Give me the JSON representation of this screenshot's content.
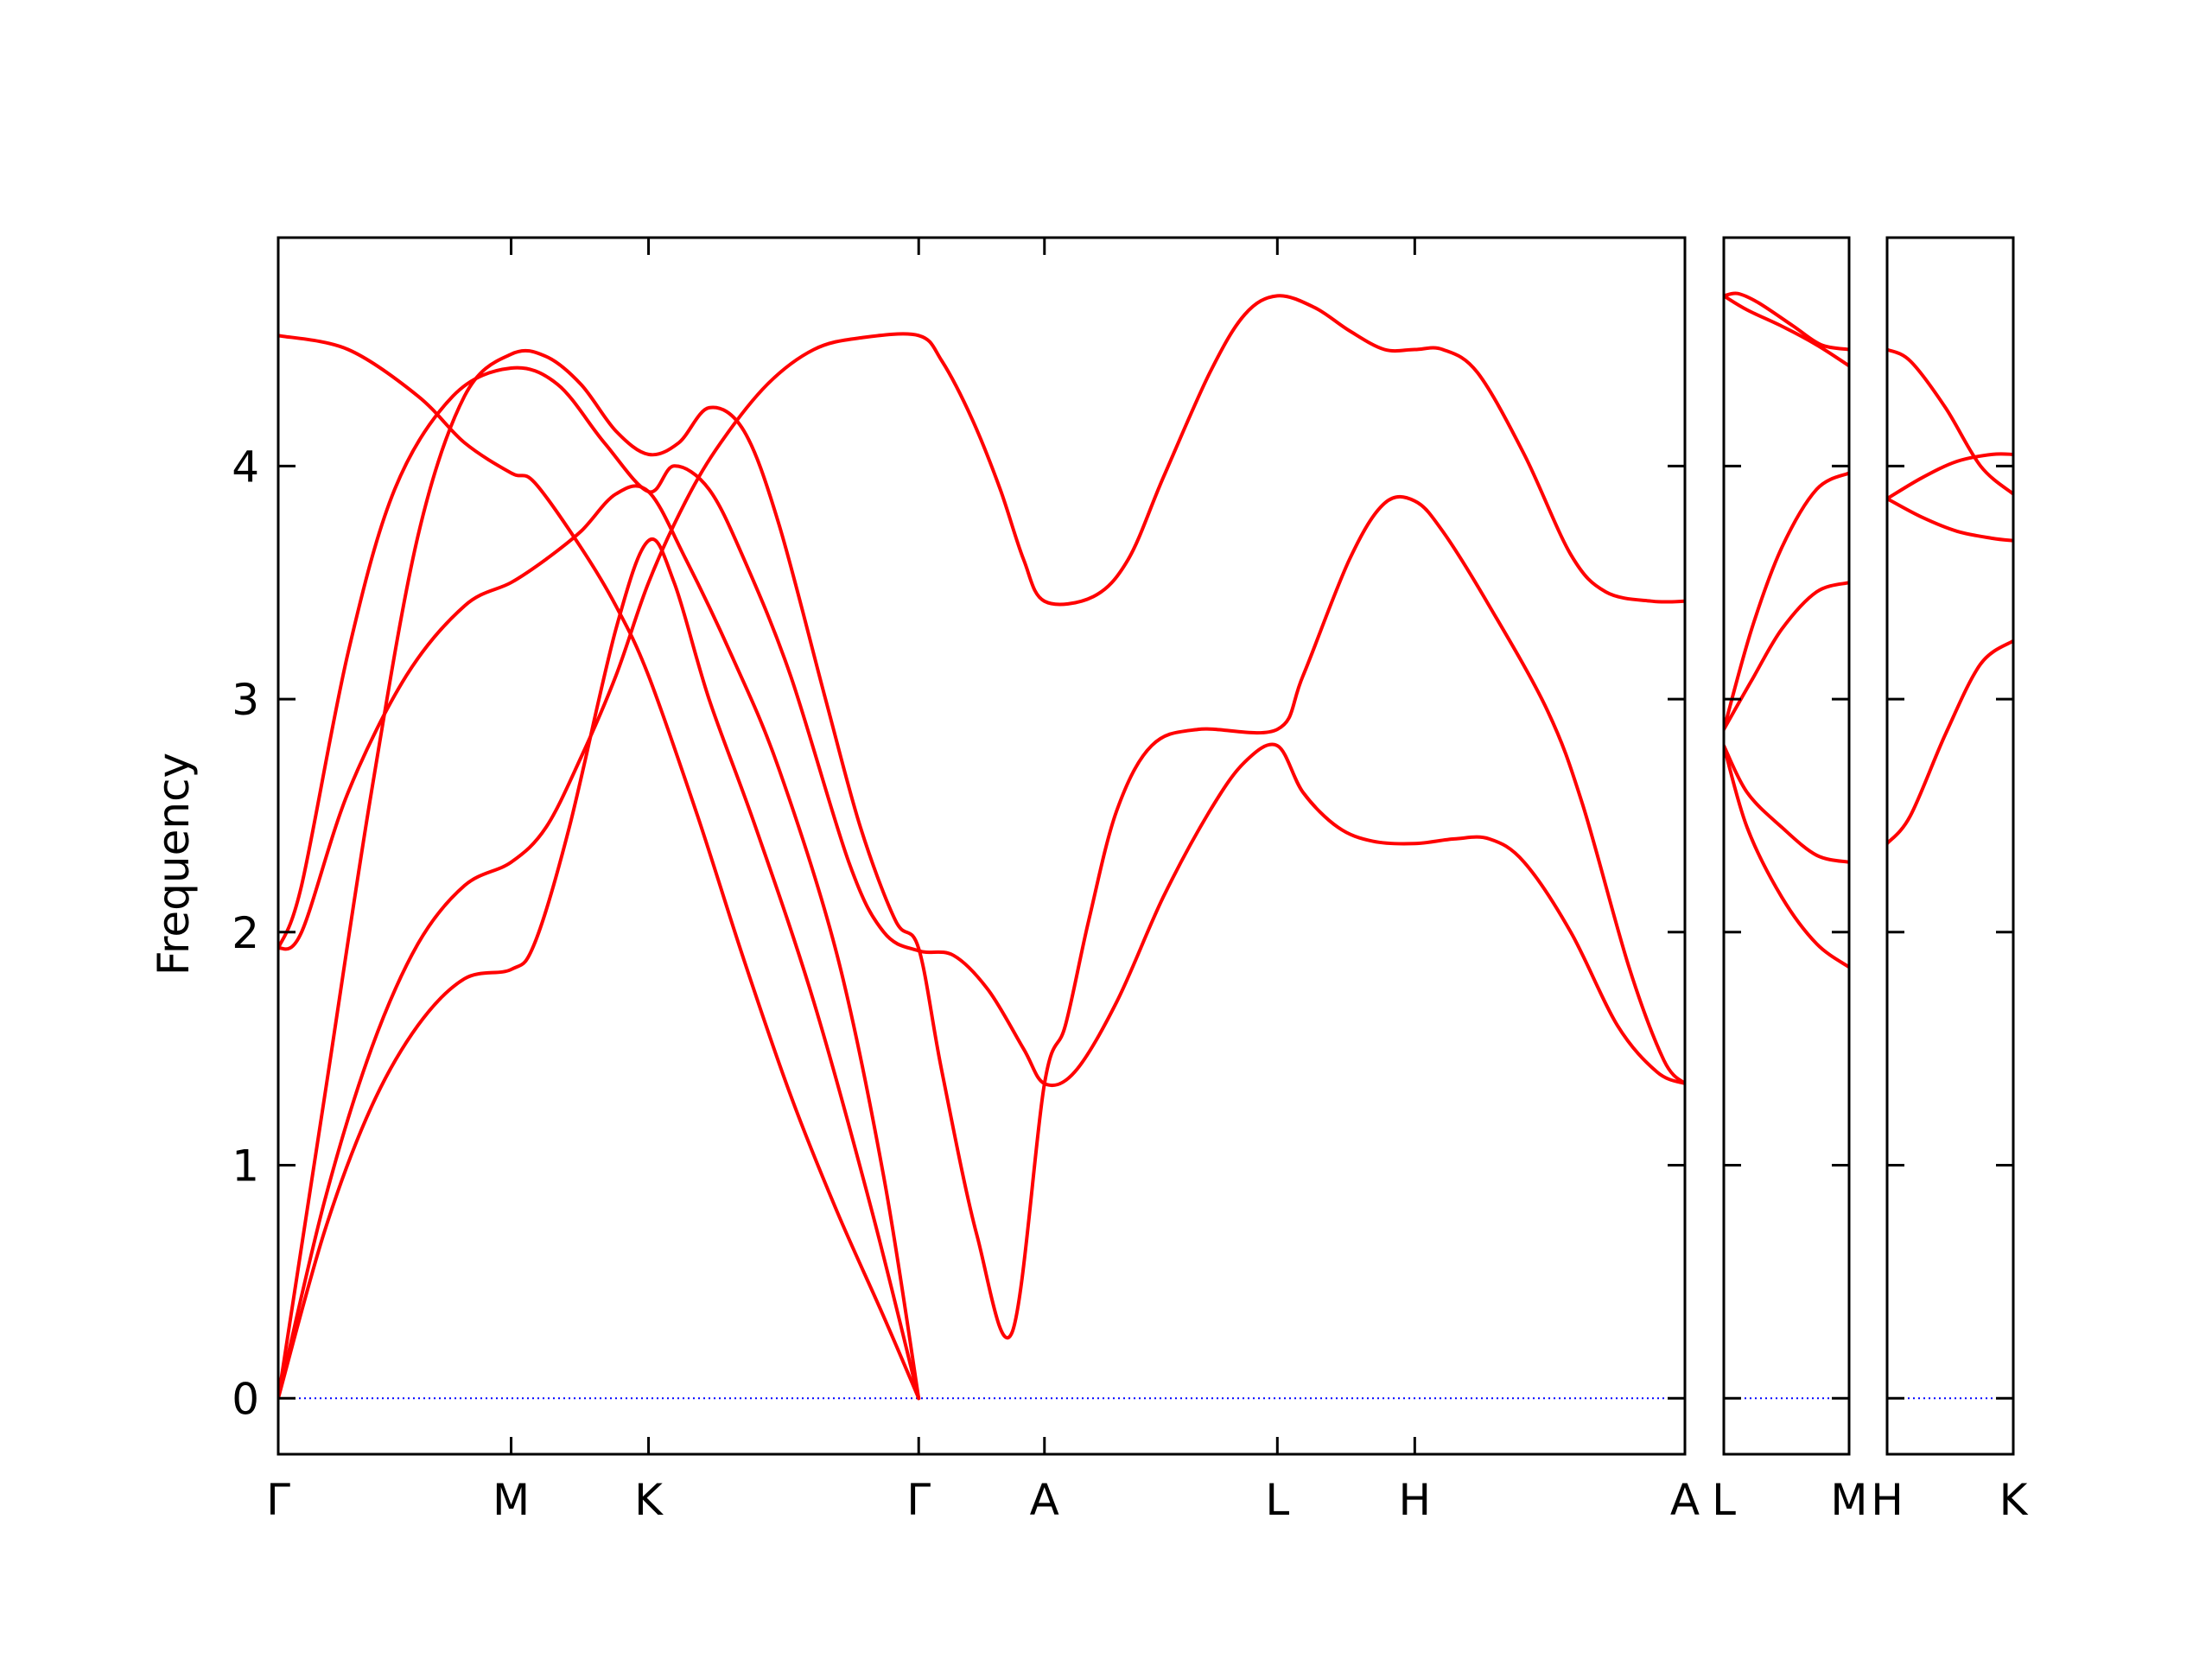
{
  "chart_data": {
    "type": "line",
    "ylabel": "Frequency",
    "ylim": [
      -0.24,
      4.98
    ],
    "yticks": [
      0,
      1,
      2,
      3,
      4
    ],
    "band_color": "#ff0000",
    "zero_line_color": "#0000ff",
    "grid": false,
    "legend": "none",
    "panels": [
      {
        "xlim": [
          0,
          6.04
        ],
        "ticks": [
          {
            "x": 0,
            "label": "Γ"
          },
          {
            "x": 1.0,
            "label": "M"
          },
          {
            "x": 1.59,
            "label": "K"
          },
          {
            "x": 2.75,
            "label": "Γ"
          },
          {
            "x": 3.29,
            "label": "A"
          },
          {
            "x": 4.29,
            "label": "L"
          },
          {
            "x": 4.88,
            "label": "H"
          },
          {
            "x": 6.04,
            "label": "A"
          }
        ],
        "bands": [
          [
            [
              0,
              4.56
            ],
            [
              0.3,
              4.5
            ],
            [
              0.6,
              4.3
            ],
            [
              0.8,
              4.1
            ],
            [
              1.0,
              3.97
            ],
            [
              1.1,
              3.93
            ],
            [
              1.3,
              3.65
            ],
            [
              1.45,
              3.4
            ],
            [
              1.59,
              3.1
            ],
            [
              1.8,
              2.5
            ],
            [
              2.0,
              1.88
            ],
            [
              2.2,
              1.3
            ],
            [
              2.4,
              0.8
            ],
            [
              2.6,
              0.35
            ],
            [
              2.75,
              0.0
            ]
          ],
          [
            [
              0,
              0.0
            ],
            [
              0.2,
              0.85
            ],
            [
              0.4,
              1.5
            ],
            [
              0.6,
              1.95
            ],
            [
              0.8,
              2.2
            ],
            [
              1.0,
              2.3
            ],
            [
              1.15,
              2.45
            ],
            [
              1.3,
              2.75
            ],
            [
              1.45,
              3.1
            ],
            [
              1.59,
              3.5
            ],
            [
              1.75,
              3.85
            ],
            [
              1.9,
              4.1
            ],
            [
              2.1,
              4.35
            ],
            [
              2.3,
              4.5
            ],
            [
              2.5,
              4.55
            ],
            [
              2.75,
              4.56
            ],
            [
              2.85,
              4.45
            ],
            [
              2.98,
              4.2
            ],
            [
              3.1,
              3.9
            ],
            [
              3.2,
              3.6
            ],
            [
              3.29,
              3.42
            ],
            [
              3.5,
              3.44
            ],
            [
              3.65,
              3.6
            ],
            [
              3.8,
              3.95
            ],
            [
              4.0,
              4.4
            ],
            [
              4.15,
              4.65
            ],
            [
              4.29,
              4.73
            ],
            [
              4.45,
              4.68
            ],
            [
              4.6,
              4.58
            ],
            [
              4.75,
              4.5
            ],
            [
              4.88,
              4.5
            ],
            [
              5.0,
              4.5
            ],
            [
              5.15,
              4.4
            ],
            [
              5.35,
              4.05
            ],
            [
              5.55,
              3.62
            ],
            [
              5.7,
              3.46
            ],
            [
              5.9,
              3.42
            ],
            [
              6.04,
              3.42
            ]
          ],
          [
            [
              0,
              1.93
            ],
            [
              0.1,
              2.0
            ],
            [
              0.3,
              2.6
            ],
            [
              0.55,
              3.1
            ],
            [
              0.8,
              3.4
            ],
            [
              1.0,
              3.5
            ],
            [
              1.15,
              3.6
            ],
            [
              1.3,
              3.72
            ],
            [
              1.45,
              3.88
            ],
            [
              1.59,
              3.89
            ],
            [
              1.75,
              3.6
            ],
            [
              1.95,
              3.18
            ],
            [
              2.15,
              2.7
            ],
            [
              2.4,
              1.9
            ],
            [
              2.6,
              0.95
            ],
            [
              2.75,
              0.0
            ]
          ],
          [
            [
              0,
              0.0
            ],
            [
              0.2,
              0.72
            ],
            [
              0.4,
              1.25
            ],
            [
              0.6,
              1.6
            ],
            [
              0.8,
              1.8
            ],
            [
              1.0,
              1.84
            ],
            [
              1.1,
              1.95
            ],
            [
              1.25,
              2.45
            ],
            [
              1.45,
              3.3
            ],
            [
              1.59,
              3.68
            ],
            [
              1.7,
              3.5
            ],
            [
              1.85,
              3.0
            ],
            [
              2.05,
              2.45
            ],
            [
              2.3,
              1.7
            ],
            [
              2.55,
              0.8
            ],
            [
              2.75,
              0.0
            ]
          ],
          [
            [
              0,
              1.93
            ],
            [
              0.1,
              2.2
            ],
            [
              0.3,
              3.2
            ],
            [
              0.5,
              3.9
            ],
            [
              0.75,
              4.3
            ],
            [
              1.0,
              4.42
            ],
            [
              1.2,
              4.35
            ],
            [
              1.4,
              4.1
            ],
            [
              1.59,
              3.89
            ],
            [
              1.7,
              4.0
            ],
            [
              1.85,
              3.9
            ],
            [
              2.0,
              3.6
            ],
            [
              2.2,
              3.1
            ],
            [
              2.45,
              2.3
            ],
            [
              2.6,
              2.0
            ],
            [
              2.75,
              1.92
            ],
            [
              2.9,
              1.9
            ],
            [
              3.05,
              1.75
            ],
            [
              3.2,
              1.5
            ],
            [
              3.29,
              1.35
            ],
            [
              3.42,
              1.4
            ],
            [
              3.6,
              1.7
            ],
            [
              3.8,
              2.15
            ],
            [
              4.0,
              2.52
            ],
            [
              4.15,
              2.73
            ],
            [
              4.29,
              2.8
            ],
            [
              4.4,
              2.6
            ],
            [
              4.55,
              2.45
            ],
            [
              4.7,
              2.39
            ],
            [
              4.88,
              2.38
            ],
            [
              5.05,
              2.4
            ],
            [
              5.2,
              2.4
            ],
            [
              5.35,
              2.3
            ],
            [
              5.55,
              2.0
            ],
            [
              5.75,
              1.6
            ],
            [
              5.92,
              1.4
            ],
            [
              6.04,
              1.35
            ]
          ],
          [
            [
              0,
              0.0
            ],
            [
              0.2,
              1.3
            ],
            [
              0.4,
              2.6
            ],
            [
              0.6,
              3.7
            ],
            [
              0.8,
              4.3
            ],
            [
              1.0,
              4.48
            ],
            [
              1.15,
              4.47
            ],
            [
              1.3,
              4.35
            ],
            [
              1.45,
              4.15
            ],
            [
              1.59,
              4.05
            ],
            [
              1.72,
              4.1
            ],
            [
              1.85,
              4.25
            ],
            [
              2.0,
              4.15
            ],
            [
              2.15,
              3.75
            ],
            [
              2.35,
              3.0
            ],
            [
              2.5,
              2.45
            ],
            [
              2.65,
              2.05
            ],
            [
              2.75,
              1.93
            ],
            [
              2.85,
              1.4
            ],
            [
              3.0,
              0.7
            ],
            [
              3.15,
              0.28
            ],
            [
              3.29,
              1.35
            ],
            [
              3.38,
              1.6
            ],
            [
              3.48,
              2.05
            ],
            [
              3.6,
              2.52
            ],
            [
              3.75,
              2.8
            ],
            [
              3.95,
              2.87
            ],
            [
              4.29,
              2.87
            ],
            [
              4.4,
              3.1
            ],
            [
              4.6,
              3.6
            ],
            [
              4.75,
              3.84
            ],
            [
              4.88,
              3.85
            ],
            [
              5.0,
              3.72
            ],
            [
              5.2,
              3.4
            ],
            [
              5.45,
              2.95
            ],
            [
              5.6,
              2.55
            ],
            [
              5.8,
              1.85
            ],
            [
              5.95,
              1.45
            ],
            [
              6.04,
              1.35
            ]
          ]
        ]
      },
      {
        "xlim": [
          0,
          0.54
        ],
        "ticks": [
          {
            "x": 0,
            "label": "L"
          },
          {
            "x": 0.54,
            "label": "M"
          }
        ],
        "bands": [
          [
            [
              0,
              4.73
            ],
            [
              0.06,
              4.74
            ],
            [
              0.15,
              4.7
            ],
            [
              0.3,
              4.6
            ],
            [
              0.42,
              4.52
            ],
            [
              0.54,
              4.5
            ]
          ],
          [
            [
              0,
              4.73
            ],
            [
              0.1,
              4.67
            ],
            [
              0.25,
              4.6
            ],
            [
              0.4,
              4.52
            ],
            [
              0.54,
              4.43
            ]
          ],
          [
            [
              0,
              2.87
            ],
            [
              0.12,
              3.3
            ],
            [
              0.25,
              3.65
            ],
            [
              0.4,
              3.9
            ],
            [
              0.54,
              3.97
            ]
          ],
          [
            [
              0,
              2.87
            ],
            [
              0.12,
              3.08
            ],
            [
              0.25,
              3.3
            ],
            [
              0.4,
              3.46
            ],
            [
              0.54,
              3.5
            ]
          ],
          [
            [
              0,
              2.8
            ],
            [
              0.1,
              2.6
            ],
            [
              0.25,
              2.45
            ],
            [
              0.4,
              2.33
            ],
            [
              0.54,
              2.3
            ]
          ],
          [
            [
              0,
              2.8
            ],
            [
              0.1,
              2.45
            ],
            [
              0.25,
              2.15
            ],
            [
              0.4,
              1.95
            ],
            [
              0.54,
              1.85
            ]
          ]
        ]
      },
      {
        "xlim": [
          0,
          0.54
        ],
        "ticks": [
          {
            "x": 0,
            "label": "H"
          },
          {
            "x": 0.54,
            "label": "K"
          }
        ],
        "bands": [
          [
            [
              0,
              4.5
            ],
            [
              0.1,
              4.45
            ],
            [
              0.25,
              4.25
            ],
            [
              0.4,
              4.0
            ],
            [
              0.54,
              3.88
            ]
          ],
          [
            [
              0,
              3.86
            ],
            [
              0.15,
              3.95
            ],
            [
              0.3,
              4.02
            ],
            [
              0.45,
              4.05
            ],
            [
              0.54,
              4.05
            ]
          ],
          [
            [
              0,
              3.86
            ],
            [
              0.15,
              3.78
            ],
            [
              0.3,
              3.72
            ],
            [
              0.45,
              3.69
            ],
            [
              0.54,
              3.68
            ]
          ],
          [
            [
              0,
              2.38
            ],
            [
              0.1,
              2.5
            ],
            [
              0.25,
              2.85
            ],
            [
              0.4,
              3.15
            ],
            [
              0.54,
              3.25
            ]
          ]
        ]
      }
    ]
  }
}
